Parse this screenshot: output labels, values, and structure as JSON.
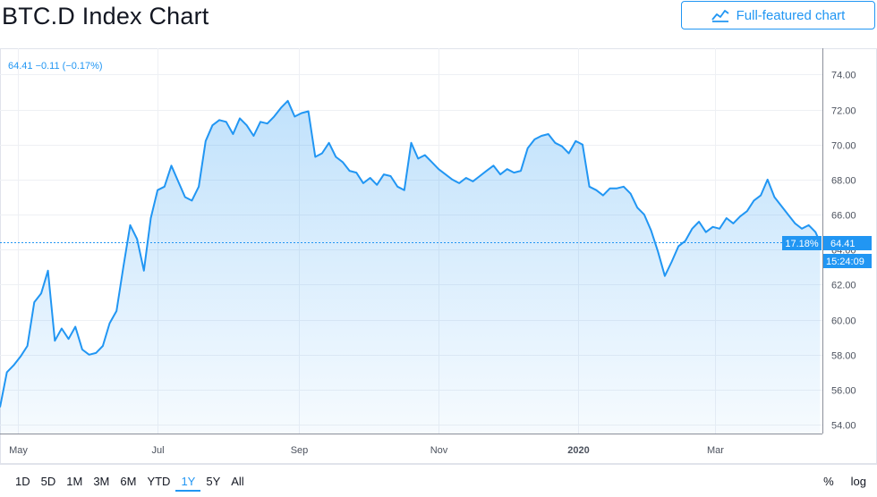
{
  "header": {
    "title": "BTC.D Index Chart",
    "full_featured_label": "Full-featured chart",
    "icon": "chart-line-icon"
  },
  "colors": {
    "line": "#2196f3",
    "text": "#131722",
    "axis_text": "#4c525e",
    "grid": "#eef0f4"
  },
  "legend": "64.41 −0.11 (−0.17%)",
  "price_labels": {
    "pct": "17.18%",
    "price": "64.41",
    "time": "15:24:09"
  },
  "range_buttons": [
    "1D",
    "5D",
    "1M",
    "3M",
    "6M",
    "YTD",
    "1Y",
    "5Y",
    "All"
  ],
  "active_range": "1Y",
  "toggles": {
    "percent": "%",
    "log": "log"
  },
  "chart_data": {
    "type": "area",
    "y_ticks": [
      "74.00",
      "72.00",
      "70.00",
      "68.00",
      "66.00",
      "64.00",
      "62.00",
      "60.00",
      "58.00",
      "56.00",
      "54.00"
    ],
    "ylim": [
      53.5,
      75.5
    ],
    "x_ticks": [
      "May",
      "Jul",
      "Sep",
      "Nov",
      "2020",
      "Mar"
    ],
    "x_tick_dates": [
      "2019-05-01",
      "2019-07-01",
      "2019-09-01",
      "2019-11-01",
      "2020-01-01",
      "2020-03-01"
    ],
    "xlim": [
      "2019-04-23",
      "2020-04-17"
    ],
    "current_value": 64.41,
    "series": [
      {
        "x": [
          "2019-04-23",
          "2019-04-26",
          "2019-04-29",
          "2019-05-02",
          "2019-05-05",
          "2019-05-08",
          "2019-05-11",
          "2019-05-14",
          "2019-05-17",
          "2019-05-20",
          "2019-05-23",
          "2019-05-26",
          "2019-05-29",
          "2019-06-01",
          "2019-06-04",
          "2019-06-07",
          "2019-06-10",
          "2019-06-13",
          "2019-06-16",
          "2019-06-19",
          "2019-06-22",
          "2019-06-25",
          "2019-06-28",
          "2019-07-01",
          "2019-07-04",
          "2019-07-07",
          "2019-07-10",
          "2019-07-13",
          "2019-07-16",
          "2019-07-19",
          "2019-07-22",
          "2019-07-25",
          "2019-07-28",
          "2019-07-31",
          "2019-08-03",
          "2019-08-06",
          "2019-08-09",
          "2019-08-12",
          "2019-08-15",
          "2019-08-18",
          "2019-08-21",
          "2019-08-24",
          "2019-08-27",
          "2019-08-30",
          "2019-09-02",
          "2019-09-05",
          "2019-09-08",
          "2019-09-11",
          "2019-09-14",
          "2019-09-17",
          "2019-09-20",
          "2019-09-23",
          "2019-09-26",
          "2019-09-29",
          "2019-10-02",
          "2019-10-05",
          "2019-10-08",
          "2019-10-11",
          "2019-10-14",
          "2019-10-17",
          "2019-10-20",
          "2019-10-23",
          "2019-10-26",
          "2019-10-29",
          "2019-11-01",
          "2019-11-04",
          "2019-11-07",
          "2019-11-10",
          "2019-11-13",
          "2019-11-16",
          "2019-11-19",
          "2019-11-22",
          "2019-11-25",
          "2019-11-28",
          "2019-12-01",
          "2019-12-04",
          "2019-12-07",
          "2019-12-10",
          "2019-12-13",
          "2019-12-16",
          "2019-12-19",
          "2019-12-22",
          "2019-12-25",
          "2019-12-28",
          "2019-12-31",
          "2020-01-03",
          "2020-01-06",
          "2020-01-09",
          "2020-01-12",
          "2020-01-15",
          "2020-01-18",
          "2020-01-21",
          "2020-01-24",
          "2020-01-27",
          "2020-01-30",
          "2020-02-02",
          "2020-02-05",
          "2020-02-08",
          "2020-02-11",
          "2020-02-14",
          "2020-02-17",
          "2020-02-20",
          "2020-02-23",
          "2020-02-26",
          "2020-02-29",
          "2020-03-03",
          "2020-03-06",
          "2020-03-09",
          "2020-03-12",
          "2020-03-15",
          "2020-03-18",
          "2020-03-21",
          "2020-03-24",
          "2020-03-27",
          "2020-03-30",
          "2020-04-02",
          "2020-04-05",
          "2020-04-08",
          "2020-04-11",
          "2020-04-14",
          "2020-04-16"
        ],
        "y": [
          55.0,
          57.0,
          57.4,
          57.9,
          58.5,
          61.0,
          61.5,
          62.8,
          58.8,
          59.5,
          58.9,
          59.6,
          58.3,
          58.0,
          58.1,
          58.5,
          59.8,
          60.5,
          63.0,
          65.4,
          64.6,
          62.8,
          65.8,
          67.4,
          67.6,
          68.8,
          67.9,
          67.0,
          66.8,
          67.6,
          70.2,
          71.1,
          71.4,
          71.3,
          70.6,
          71.5,
          71.1,
          70.5,
          71.3,
          71.2,
          71.6,
          72.1,
          72.5,
          71.6,
          71.8,
          71.9,
          69.3,
          69.5,
          70.1,
          69.3,
          69.0,
          68.5,
          68.4,
          67.8,
          68.1,
          67.7,
          68.3,
          68.2,
          67.6,
          67.4,
          70.1,
          69.2,
          69.4,
          69.0,
          68.6,
          68.3,
          68.0,
          67.8,
          68.1,
          67.9,
          68.2,
          68.5,
          68.8,
          68.3,
          68.6,
          68.4,
          68.5,
          69.8,
          70.3,
          70.5,
          70.6,
          70.1,
          69.9,
          69.5,
          70.2,
          70.0,
          67.6,
          67.4,
          67.1,
          67.5,
          67.5,
          67.6,
          67.2,
          66.4,
          66.0,
          65.1,
          63.9,
          62.5,
          63.3,
          64.2,
          64.5,
          65.2,
          65.6,
          65.0,
          65.3,
          65.2,
          65.8,
          65.5,
          65.9,
          66.2,
          66.8,
          67.1,
          68.0,
          67.0,
          66.5,
          66.0,
          65.5,
          65.2,
          65.4,
          65.0,
          64.41
        ]
      }
    ]
  }
}
